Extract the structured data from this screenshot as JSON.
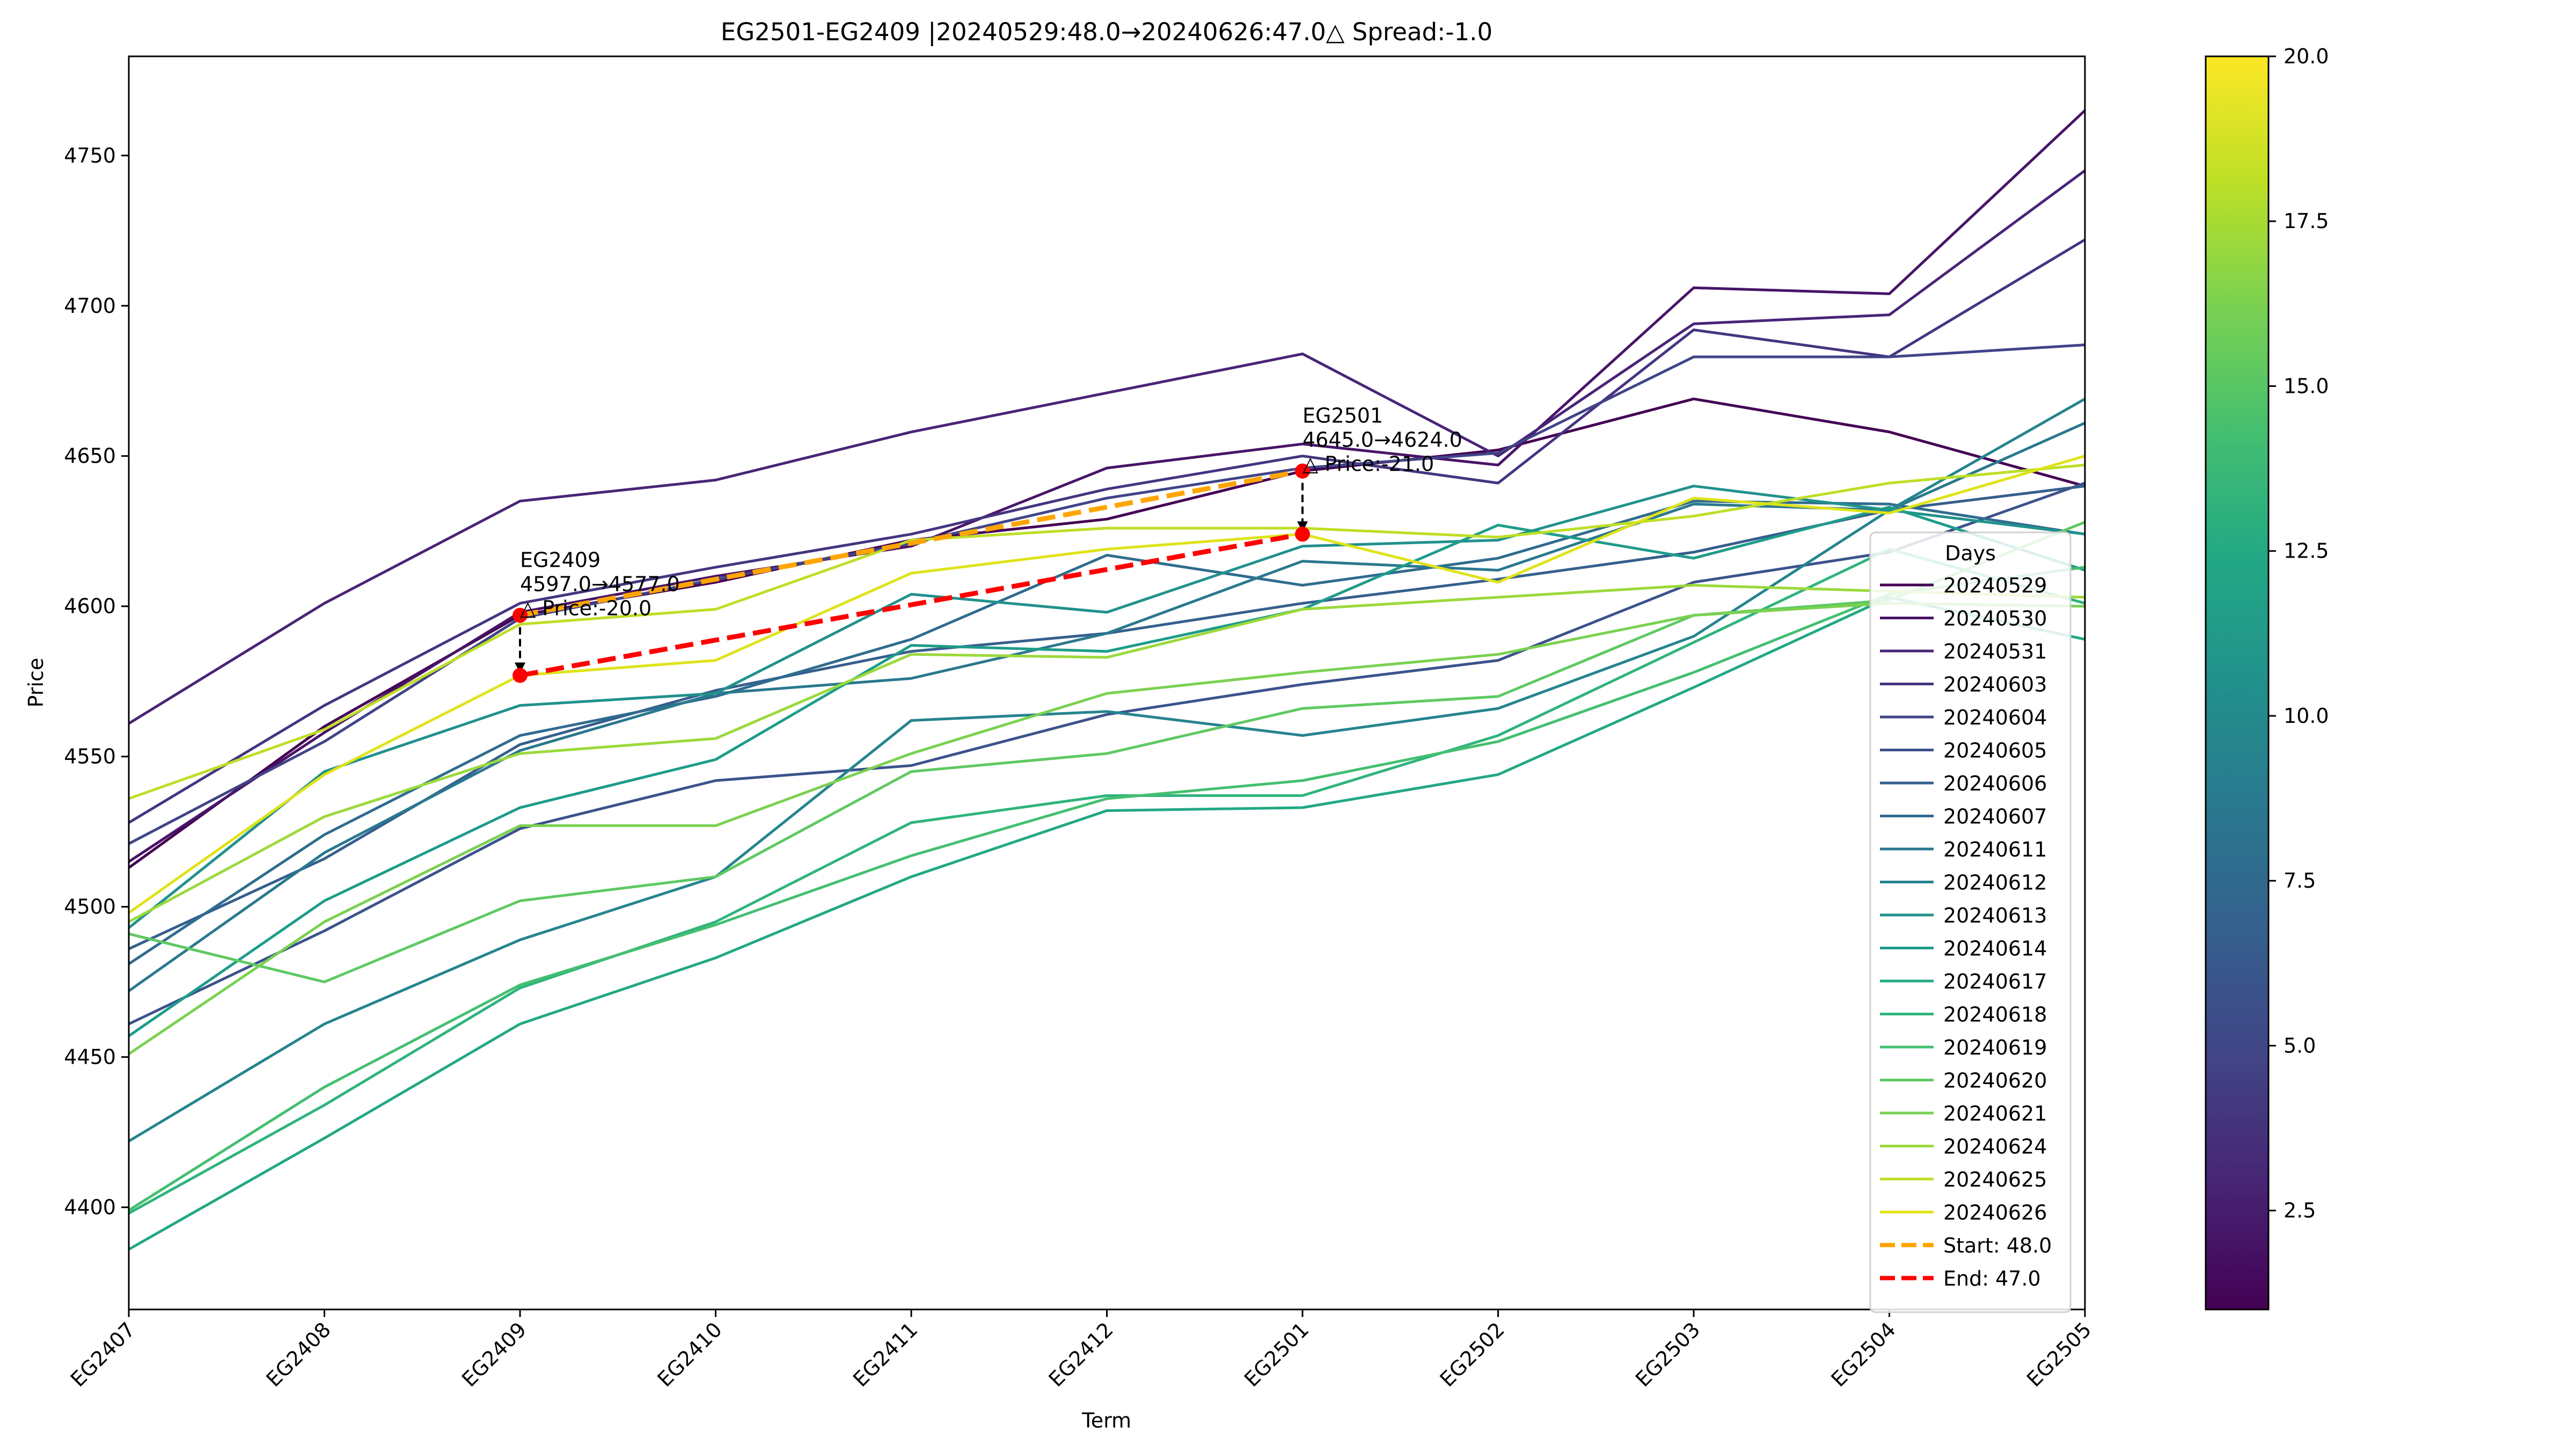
{
  "chart_data": {
    "type": "line",
    "title": "EG2501-EG2409 |20240529:48.0→20240626:47.0△ Spread:-1.0",
    "xlabel": "Term",
    "ylabel": "Price",
    "ylim": [
      4366,
      4783
    ],
    "yticks": [
      4400,
      4450,
      4500,
      4550,
      4600,
      4650,
      4700,
      4750
    ],
    "categories": [
      "EG2407",
      "EG2408",
      "EG2409",
      "EG2410",
      "EG2411",
      "EG2412",
      "EG2501",
      "EG2502",
      "EG2503",
      "EG2504",
      "EG2505"
    ],
    "legend_title": "Days",
    "legend_position": "lower-right",
    "colormap": "viridis",
    "colorbar": {
      "min": 1,
      "max": 20,
      "ticks": [
        "2.5",
        "5.0",
        "7.5",
        "10.0",
        "12.5",
        "15.0",
        "17.5",
        "20.0"
      ]
    },
    "series": [
      {
        "name": "20240529",
        "color": "#440154",
        "values": [
          4513,
          4560,
          4597,
          4608,
          4622,
          4629,
          4645,
          4652,
          4669,
          4658,
          4640
        ]
      },
      {
        "name": "20240530",
        "color": "#481467",
        "values": [
          4515,
          4558,
          4598,
          4610,
          4620,
          4646,
          4654,
          4647,
          4706,
          4704,
          4765
        ]
      },
      {
        "name": "20240531",
        "color": "#482576",
        "values": [
          4561,
          4601,
          4635,
          4642,
          4658,
          4671,
          4684,
          4650,
          4694,
          4697,
          4745
        ]
      },
      {
        "name": "20240603",
        "color": "#463480",
        "values": [
          4528,
          4567,
          4601,
          4613,
          4624,
          4639,
          4650,
          4641,
          4692,
          4683,
          4722
        ]
      },
      {
        "name": "20240604",
        "color": "#414487",
        "values": [
          4521,
          4555,
          4596,
          4609,
          4621,
          4636,
          4646,
          4651,
          4683,
          4683,
          4687
        ]
      },
      {
        "name": "20240605",
        "color": "#3b528b",
        "values": [
          4461,
          4492,
          4526,
          4542,
          4547,
          4564,
          4574,
          4582,
          4608,
          4618,
          4641
        ]
      },
      {
        "name": "20240606",
        "color": "#355f8d",
        "values": [
          4486,
          4516,
          4554,
          4572,
          4585,
          4591,
          4601,
          4609,
          4618,
          4632,
          4640
        ]
      },
      {
        "name": "20240607",
        "color": "#2f6c8e",
        "values": [
          4481,
          4524,
          4557,
          4570,
          4589,
          4617,
          4607,
          4616,
          4635,
          4634,
          4624
        ]
      },
      {
        "name": "20240611",
        "color": "#2a788e",
        "values": [
          4472,
          4518,
          4552,
          4571,
          4576,
          4591,
          4615,
          4612,
          4634,
          4632,
          4661
        ]
      },
      {
        "name": "20240612",
        "color": "#25848e",
        "values": [
          4422,
          4461,
          4489,
          4510,
          4562,
          4565,
          4557,
          4566,
          4590,
          4632,
          4669
        ]
      },
      {
        "name": "20240613",
        "color": "#21918c",
        "values": [
          4493,
          4545,
          4567,
          4571,
          4604,
          4598,
          4620,
          4622,
          4640,
          4632,
          4624
        ]
      },
      {
        "name": "20240614",
        "color": "#1e9c89",
        "values": [
          4457,
          4502,
          4533,
          4549,
          4587,
          4585,
          4599,
          4627,
          4616,
          4633,
          4612
        ]
      },
      {
        "name": "20240617",
        "color": "#22a884",
        "values": [
          4386,
          4423,
          4461,
          4483,
          4510,
          4532,
          4533,
          4544,
          4573,
          4603,
          4589
        ]
      },
      {
        "name": "20240618",
        "color": "#2fb47c",
        "values": [
          4398,
          4434,
          4473,
          4495,
          4528,
          4537,
          4537,
          4557,
          4588,
          4619,
          4601
        ]
      },
      {
        "name": "20240619",
        "color": "#44bf70",
        "values": [
          4399,
          4440,
          4474,
          4494,
          4517,
          4536,
          4542,
          4555,
          4578,
          4604,
          4613
        ]
      },
      {
        "name": "20240620",
        "color": "#5ec962",
        "values": [
          4491,
          4475,
          4502,
          4510,
          4545,
          4551,
          4566,
          4570,
          4597,
          4602,
          4628
        ]
      },
      {
        "name": "20240621",
        "color": "#7ad151",
        "values": [
          4451,
          4495,
          4527,
          4527,
          4551,
          4571,
          4578,
          4584,
          4597,
          4601,
          4600
        ]
      },
      {
        "name": "20240624",
        "color": "#9bd93c",
        "values": [
          4495,
          4530,
          4551,
          4556,
          4584,
          4583,
          4599,
          4603,
          4607,
          4605,
          4603
        ]
      },
      {
        "name": "20240625",
        "color": "#bddf26",
        "values": [
          4536,
          4559,
          4594,
          4599,
          4622,
          4626,
          4626,
          4623,
          4630,
          4641,
          4647
        ]
      },
      {
        "name": "20240626",
        "color": "#dfe318",
        "values": [
          4498,
          4544,
          4577,
          4582,
          4611,
          4619,
          4624,
          4608,
          4636,
          4631,
          4650
        ]
      }
    ],
    "spread_lines": [
      {
        "name": "Start: 48.0",
        "color": "#ffa500",
        "from": [
          "EG2409",
          4597
        ],
        "to": [
          "EG2501",
          4645
        ]
      },
      {
        "name": "End: 47.0",
        "color": "#ff0000",
        "from": [
          "EG2409",
          4577
        ],
        "to": [
          "EG2501",
          4624
        ]
      }
    ],
    "annotations": [
      {
        "term": "EG2409",
        "start": 4597,
        "end": 4577,
        "lines": [
          "EG2409",
          "4597.0→4577.0",
          "△ Price:-20.0"
        ]
      },
      {
        "term": "EG2501",
        "start": 4645,
        "end": 4624,
        "lines": [
          "EG2501",
          "4645.0→4624.0",
          "△ Price:-21.0"
        ]
      }
    ]
  }
}
